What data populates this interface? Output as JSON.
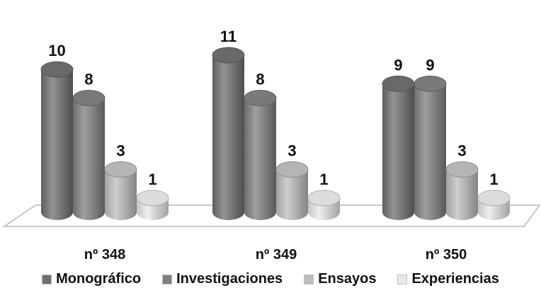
{
  "chart_data": {
    "type": "bar",
    "categories": [
      "nº 348",
      "nº 349",
      "nº 350"
    ],
    "series": [
      {
        "name": "Monográfico",
        "values": [
          10,
          11,
          9
        ],
        "color": "#6f6f6f"
      },
      {
        "name": "Investigaciones",
        "values": [
          8,
          8,
          9
        ],
        "color": "#7f7f7f"
      },
      {
        "name": "Ensayos",
        "values": [
          3,
          3,
          3
        ],
        "color": "#bdbdbd"
      },
      {
        "name": "Experiencias",
        "values": [
          1,
          1,
          1
        ],
        "color": "#e8e8e8"
      }
    ],
    "title": "",
    "xlabel": "",
    "ylabel": "",
    "ylim": [
      0,
      11
    ],
    "grid": false,
    "legend_position": "bottom"
  }
}
